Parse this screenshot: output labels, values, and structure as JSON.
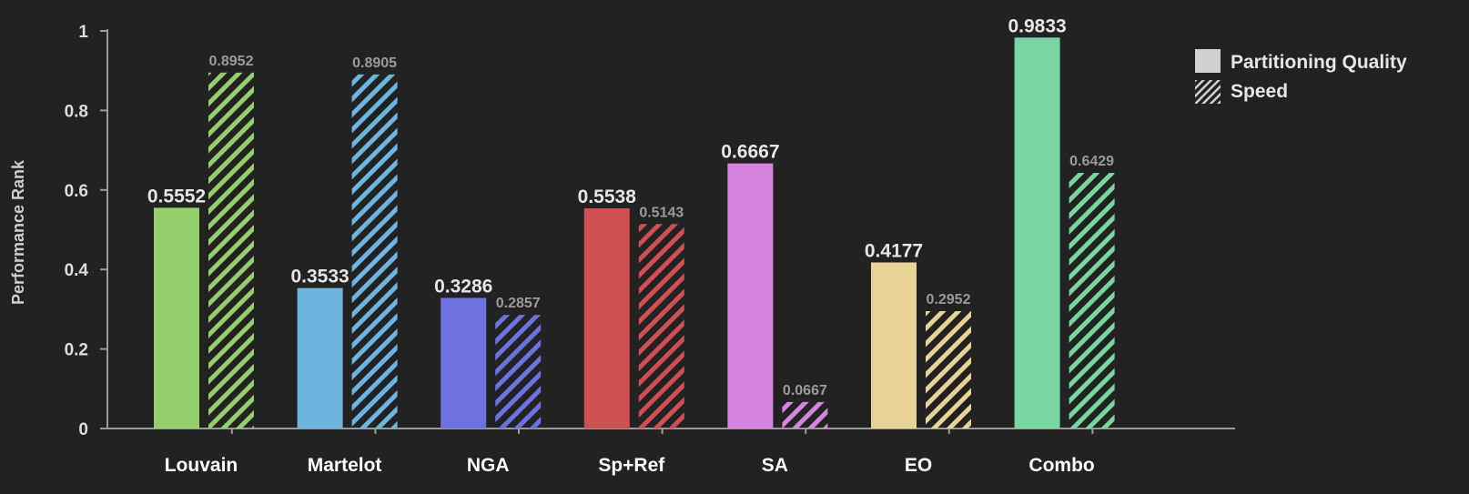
{
  "chart_data": {
    "type": "bar",
    "categories": [
      "Louvain",
      "Martelot",
      "NGA",
      "Sp+Ref",
      "SA",
      "EO",
      "Combo"
    ],
    "colors": [
      "#95cf6c",
      "#6bb5e0",
      "#6e72e0",
      "#cf4f53",
      "#d584e0",
      "#e8d396",
      "#79d6a0"
    ],
    "series": [
      {
        "name": "Partitioning Quality",
        "pattern": "solid",
        "values": [
          0.5552,
          0.3533,
          0.3286,
          0.5538,
          0.6667,
          0.4177,
          0.9833
        ],
        "labels": [
          "0.5552",
          "0.3533",
          "0.3286",
          "0.5538",
          "0.6667",
          "0.4177",
          "0.9833"
        ]
      },
      {
        "name": "Speed",
        "pattern": "hatched",
        "values": [
          0.8952,
          0.8905,
          0.2857,
          0.5143,
          0.0667,
          0.2952,
          0.6429
        ],
        "labels": [
          "0.8952",
          "0.8905",
          "0.2857",
          "0.5143",
          "0.0667",
          "0.2952",
          "0.6429"
        ]
      }
    ],
    "ylabel": "Performance Rank",
    "xlabel": "",
    "ylim": [
      0,
      1
    ],
    "yticks": [
      {
        "value": 0,
        "label": "0"
      },
      {
        "value": 0.2,
        "label": "0.2"
      },
      {
        "value": 0.4,
        "label": "0.4"
      },
      {
        "value": 0.6,
        "label": "0.6"
      },
      {
        "value": 0.8,
        "label": "0.8"
      },
      {
        "value": 1,
        "label": "1"
      }
    ],
    "grid": false,
    "legend_position": "top-right"
  }
}
